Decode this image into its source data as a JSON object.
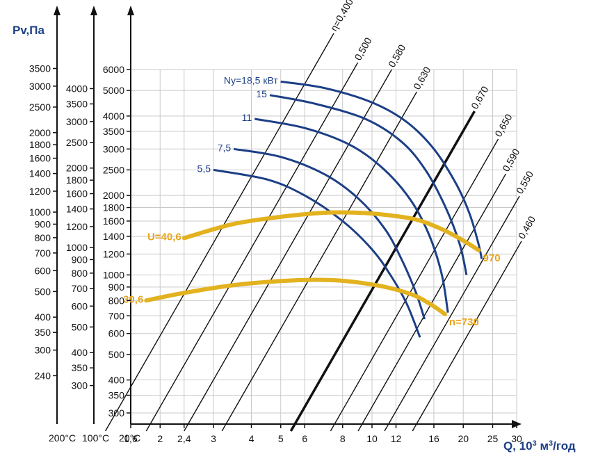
{
  "chart_data": {
    "type": "line",
    "title": "",
    "colors": {
      "power_curves": "#1c3f86",
      "speed_curves": "#e2b21f",
      "speed_labels": "#e7a41a",
      "efficiency_lines": "#111111",
      "grid": "#c9c9c9"
    },
    "x_axis": {
      "label_main": "Q, 10",
      "label_sup": "3",
      "label_unit": " м",
      "label_unit_sup": "3",
      "label_tail": "/год",
      "scale": "log",
      "range": [
        1.6,
        30
      ],
      "ticks": [
        {
          "value": 1.6,
          "label": "1,6"
        },
        {
          "value": 2,
          "label": "2"
        },
        {
          "value": 2.4,
          "label": "2,4"
        },
        {
          "value": 3,
          "label": "3"
        },
        {
          "value": 4,
          "label": "4"
        },
        {
          "value": 5,
          "label": "5"
        },
        {
          "value": 6,
          "label": "6"
        },
        {
          "value": 8,
          "label": "8"
        },
        {
          "value": 10,
          "label": "10"
        },
        {
          "value": 12,
          "label": "12"
        },
        {
          "value": 16,
          "label": "16"
        },
        {
          "value": 20,
          "label": "20"
        },
        {
          "value": 25,
          "label": "25"
        },
        {
          "value": 30,
          "label": "30"
        }
      ]
    },
    "y_axes": [
      {
        "id": "20C",
        "temperature_label": "20°C",
        "scale": "log",
        "ticks": [
          "300",
          "350",
          "400",
          "500",
          "600",
          "700",
          "800",
          "900",
          "1000",
          "1200",
          "1400",
          "1600",
          "1800",
          "2000",
          "2500",
          "3000",
          "3500",
          "4000",
          "5000",
          "6000"
        ]
      },
      {
        "id": "100C",
        "temperature_label": "100°C",
        "scale": "log",
        "ticks": [
          "300",
          "350",
          "400",
          "500",
          "600",
          "700",
          "800",
          "900",
          "1000",
          "1200",
          "1400",
          "1600",
          "1800",
          "2000",
          "2500",
          "3000",
          "3500",
          "4000"
        ]
      },
      {
        "id": "200C",
        "title": "Pv,Па",
        "temperature_label": "200°C",
        "scale": "log",
        "ticks": [
          "240",
          "300",
          "350",
          "400",
          "500",
          "600",
          "700",
          "800",
          "900",
          "1000",
          "1200",
          "1400",
          "1600",
          "1800",
          "2000",
          "2500",
          "3000",
          "3500"
        ]
      }
    ],
    "efficiency_lines": [
      {
        "label": "η=0,400",
        "x_bottom": 1.32
      },
      {
        "label": "0,500",
        "x_bottom": 1.8
      },
      {
        "label": "0,580",
        "x_bottom": 2.4
      },
      {
        "label": "0,630",
        "x_bottom": 3.2
      },
      {
        "label": "0,670",
        "x_bottom": 5.4,
        "bold": true
      },
      {
        "label": "0,650",
        "x_bottom": 7.3
      },
      {
        "label": "0,590",
        "x_bottom": 9.0
      },
      {
        "label": "0,550",
        "x_bottom": 11.0
      },
      {
        "label": "0,460",
        "x_bottom": 13.6
      }
    ],
    "power_curves": [
      {
        "label": "Ny=18,5 кВт",
        "points": [
          [
            5.0,
            5400
          ],
          [
            7.0,
            5100
          ],
          [
            10.0,
            4500
          ],
          [
            13.0,
            3800
          ],
          [
            16.0,
            3000
          ],
          [
            19.0,
            2200
          ],
          [
            21.0,
            1700
          ],
          [
            22.5,
            1300
          ],
          [
            23.0,
            1150
          ]
        ]
      },
      {
        "label": "15",
        "points": [
          [
            4.6,
            4800
          ],
          [
            6.5,
            4450
          ],
          [
            9.5,
            3900
          ],
          [
            12.5,
            3200
          ],
          [
            15.0,
            2500
          ],
          [
            17.5,
            1800
          ],
          [
            19.5,
            1300
          ],
          [
            20.5,
            1000
          ]
        ]
      },
      {
        "label": "11",
        "points": [
          [
            4.1,
            3900
          ],
          [
            6.0,
            3600
          ],
          [
            8.5,
            3100
          ],
          [
            11.0,
            2500
          ],
          [
            13.5,
            1900
          ],
          [
            15.5,
            1400
          ],
          [
            17.0,
            1000
          ],
          [
            17.8,
            720
          ]
        ]
      },
      {
        "label": "7,5",
        "points": [
          [
            3.5,
            3000
          ],
          [
            5.0,
            2800
          ],
          [
            7.0,
            2400
          ],
          [
            9.0,
            1950
          ],
          [
            11.0,
            1500
          ],
          [
            12.5,
            1150
          ],
          [
            14.0,
            850
          ],
          [
            14.9,
            680
          ]
        ]
      },
      {
        "label": "5,5",
        "points": [
          [
            3.0,
            2500
          ],
          [
            4.5,
            2300
          ],
          [
            6.0,
            2000
          ],
          [
            8.0,
            1600
          ],
          [
            10.0,
            1250
          ],
          [
            11.5,
            1000
          ],
          [
            13.0,
            780
          ],
          [
            14.4,
            580
          ]
        ]
      }
    ],
    "speed_curves": [
      {
        "label": "U=40,6",
        "speed_label": "970",
        "points": [
          [
            2.4,
            1380
          ],
          [
            3.5,
            1560
          ],
          [
            5.0,
            1660
          ],
          [
            7.0,
            1720
          ],
          [
            9.0,
            1720
          ],
          [
            11.0,
            1690
          ],
          [
            14.0,
            1620
          ],
          [
            17.0,
            1490
          ],
          [
            20.0,
            1350
          ],
          [
            22.5,
            1240
          ]
        ]
      },
      {
        "label": "30,6",
        "speed_label": "n=730",
        "points": [
          [
            1.8,
            800
          ],
          [
            2.4,
            855
          ],
          [
            3.5,
            915
          ],
          [
            5.0,
            948
          ],
          [
            6.5,
            958
          ],
          [
            8.0,
            950
          ],
          [
            10.0,
            920
          ],
          [
            12.0,
            880
          ],
          [
            14.0,
            830
          ],
          [
            16.0,
            760
          ],
          [
            17.4,
            710
          ]
        ]
      }
    ]
  }
}
